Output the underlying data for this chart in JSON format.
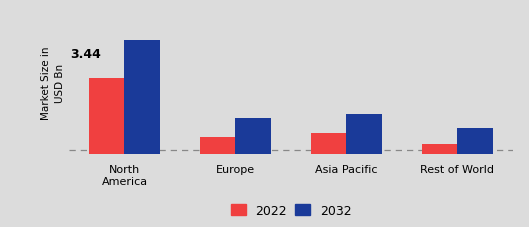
{
  "categories": [
    "North\nAmerica",
    "Europe",
    "Asia Pacific",
    "Rest of World"
  ],
  "values_2022": [
    2.6,
    1.3,
    1.38,
    1.15
  ],
  "values_2032": [
    3.44,
    1.72,
    1.8,
    1.5
  ],
  "bar_color_2022": "#f04040",
  "bar_color_2032": "#1a3a99",
  "annotation_text": "3.44",
  "annotation_category_idx": 0,
  "ylabel": "Market Size in\nUSD Bn",
  "legend_labels": [
    "2022",
    "2032"
  ],
  "bg_color_left": "#d0d0d0",
  "bg_color_right": "#e8e8e8",
  "dashed_line_y": 1.02,
  "bar_width": 0.32,
  "ylim": [
    0.92,
    4.1
  ],
  "ylabel_fontsize": 7.5,
  "tick_fontsize": 8,
  "annotation_fontsize": 9,
  "legend_fontsize": 9
}
